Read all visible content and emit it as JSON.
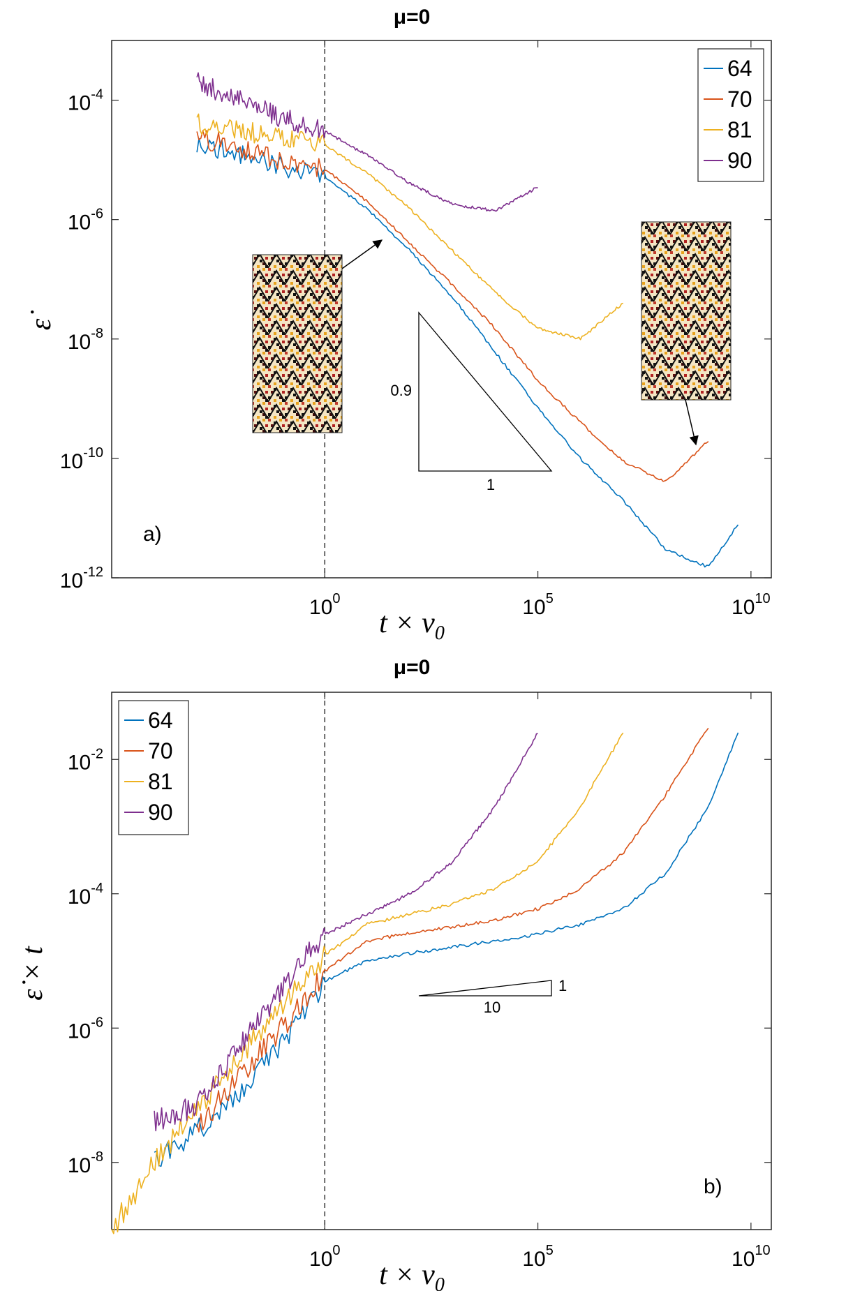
{
  "colors": {
    "64": "#0072BD",
    "70": "#D95319",
    "81": "#EDB120",
    "90": "#7E2F8E",
    "axis": "#262626"
  },
  "chart_data": [
    {
      "type": "line",
      "title": "μ=0",
      "panel_label": "a)",
      "xscale": "log",
      "yscale": "log",
      "xlabel": "t × ν0",
      "ylabel": "ε̇",
      "xlim": [
        1e-05,
        30000000000.0
      ],
      "ylim": [
        1e-12,
        0.001
      ],
      "xticks": [
        {
          "base": "10",
          "exp": "0"
        },
        {
          "base": "10",
          "exp": "5"
        },
        {
          "base": "10",
          "exp": "10"
        }
      ],
      "yticks": [
        {
          "base": "10",
          "exp": "-12"
        },
        {
          "base": "10",
          "exp": "-10"
        },
        {
          "base": "10",
          "exp": "-8"
        },
        {
          "base": "10",
          "exp": "-6"
        },
        {
          "base": "10",
          "exp": "-4"
        }
      ],
      "legend": [
        "64",
        "70",
        "81",
        "90"
      ],
      "legend_position": "top-right",
      "vline_x": 1,
      "slope_triangle": {
        "vertical": "0.9",
        "horizontal": "1"
      },
      "series": [
        {
          "name": "64",
          "x": [
            0.001,
            0.01,
            0.1,
            1,
            10,
            100,
            1000,
            10000,
            100000,
            1000000.0,
            10000000.0,
            100000000.0,
            1000000000.0,
            5000000000.0
          ],
          "y": [
            2e-05,
            1.2e-05,
            8e-06,
            5e-06,
            1.5e-06,
            3e-07,
            5e-08,
            6e-09,
            7e-10,
            1e-10,
            2e-11,
            3e-12,
            1.5e-12,
            8e-12
          ]
        },
        {
          "name": "70",
          "x": [
            0.001,
            0.01,
            0.1,
            1,
            10,
            100,
            1000,
            10000,
            100000,
            1000000.0,
            10000000.0,
            100000000.0,
            1000000000.0
          ],
          "y": [
            2.5e-05,
            1.5e-05,
            1e-05,
            7e-06,
            2e-06,
            4e-07,
            8e-08,
            1.5e-08,
            2e-09,
            4e-10,
            9e-11,
            4e-11,
            2e-10
          ]
        },
        {
          "name": "81",
          "x": [
            0.001,
            0.01,
            0.1,
            1,
            10,
            100,
            1000,
            10000,
            100000,
            1000000.0,
            10000000.0
          ],
          "y": [
            4e-05,
            3e-05,
            2.5e-05,
            1.8e-05,
            6e-06,
            1.5e-06,
            3e-07,
            6e-08,
            1.5e-08,
            1e-08,
            4e-08
          ]
        },
        {
          "name": "90",
          "x": [
            0.001,
            0.01,
            0.1,
            1,
            10,
            100,
            1000,
            10000,
            100000
          ],
          "y": [
            0.0002,
            0.0001,
            5e-05,
            3e-05,
            1.2e-05,
            4e-06,
            1.8e-06,
            1.4e-06,
            3.5e-06
          ]
        }
      ],
      "insets": [
        {
          "id": "left",
          "points_to": "64"
        },
        {
          "id": "right",
          "points_to": "70"
        }
      ]
    },
    {
      "type": "line",
      "title": "μ=0",
      "panel_label": "b)",
      "xscale": "log",
      "yscale": "log",
      "xlabel": "t × ν0",
      "ylabel": "ε̇ × t",
      "xlim": [
        1e-05,
        30000000000.0
      ],
      "ylim": [
        1e-09,
        0.1
      ],
      "xticks": [
        {
          "base": "10",
          "exp": "0"
        },
        {
          "base": "10",
          "exp": "5"
        },
        {
          "base": "10",
          "exp": "10"
        }
      ],
      "yticks": [
        {
          "base": "10",
          "exp": "-8"
        },
        {
          "base": "10",
          "exp": "-6"
        },
        {
          "base": "10",
          "exp": "-4"
        },
        {
          "base": "10",
          "exp": "-2"
        }
      ],
      "legend": [
        "64",
        "70",
        "81",
        "90"
      ],
      "legend_position": "top-left",
      "vline_x": 1,
      "slope_triangle": {
        "vertical": "1",
        "horizontal": "10"
      },
      "series": [
        {
          "name": "64",
          "x": [
            0.0001,
            0.001,
            0.01,
            0.1,
            1,
            10,
            100,
            1000,
            10000,
            100000,
            1000000.0,
            10000000.0,
            100000000.0,
            1000000000.0,
            5000000000.0
          ],
          "y": [
            1e-08,
            3e-08,
            1e-07,
            6e-07,
            5e-06,
            1e-05,
            1.3e-05,
            1.6e-05,
            2e-05,
            2.5e-05,
            3.5e-05,
            6e-05,
            0.0002,
            0.002,
            0.025
          ]
        },
        {
          "name": "70",
          "x": [
            0.001,
            0.01,
            0.1,
            1,
            10,
            100,
            1000,
            10000,
            100000,
            1000000.0,
            10000000.0,
            100000000.0,
            1000000000.0
          ],
          "y": [
            3e-08,
            2e-07,
            1e-06,
            7e-06,
            2e-05,
            2.6e-05,
            3.2e-05,
            4e-05,
            6e-05,
            0.00012,
            0.0004,
            0.003,
            0.03
          ]
        },
        {
          "name": "81",
          "x": [
            1e-05,
            0.0001,
            0.001,
            0.01,
            0.1,
            1,
            10,
            100,
            1000,
            10000,
            100000,
            1000000.0,
            10000000.0
          ],
          "y": [
            1e-09,
            1e-08,
            6e-08,
            4e-07,
            2e-06,
            1.2e-05,
            3.5e-05,
            5e-05,
            7e-05,
            0.00012,
            0.0003,
            0.002,
            0.025
          ]
        },
        {
          "name": "90",
          "x": [
            0.0001,
            0.001,
            0.01,
            0.1,
            1,
            10,
            100,
            1000,
            10000,
            100000
          ],
          "y": [
            4e-08,
            7e-08,
            5e-07,
            4e-06,
            2.5e-05,
            5e-05,
            0.0001,
            0.0003,
            0.002,
            0.025
          ]
        }
      ]
    }
  ]
}
